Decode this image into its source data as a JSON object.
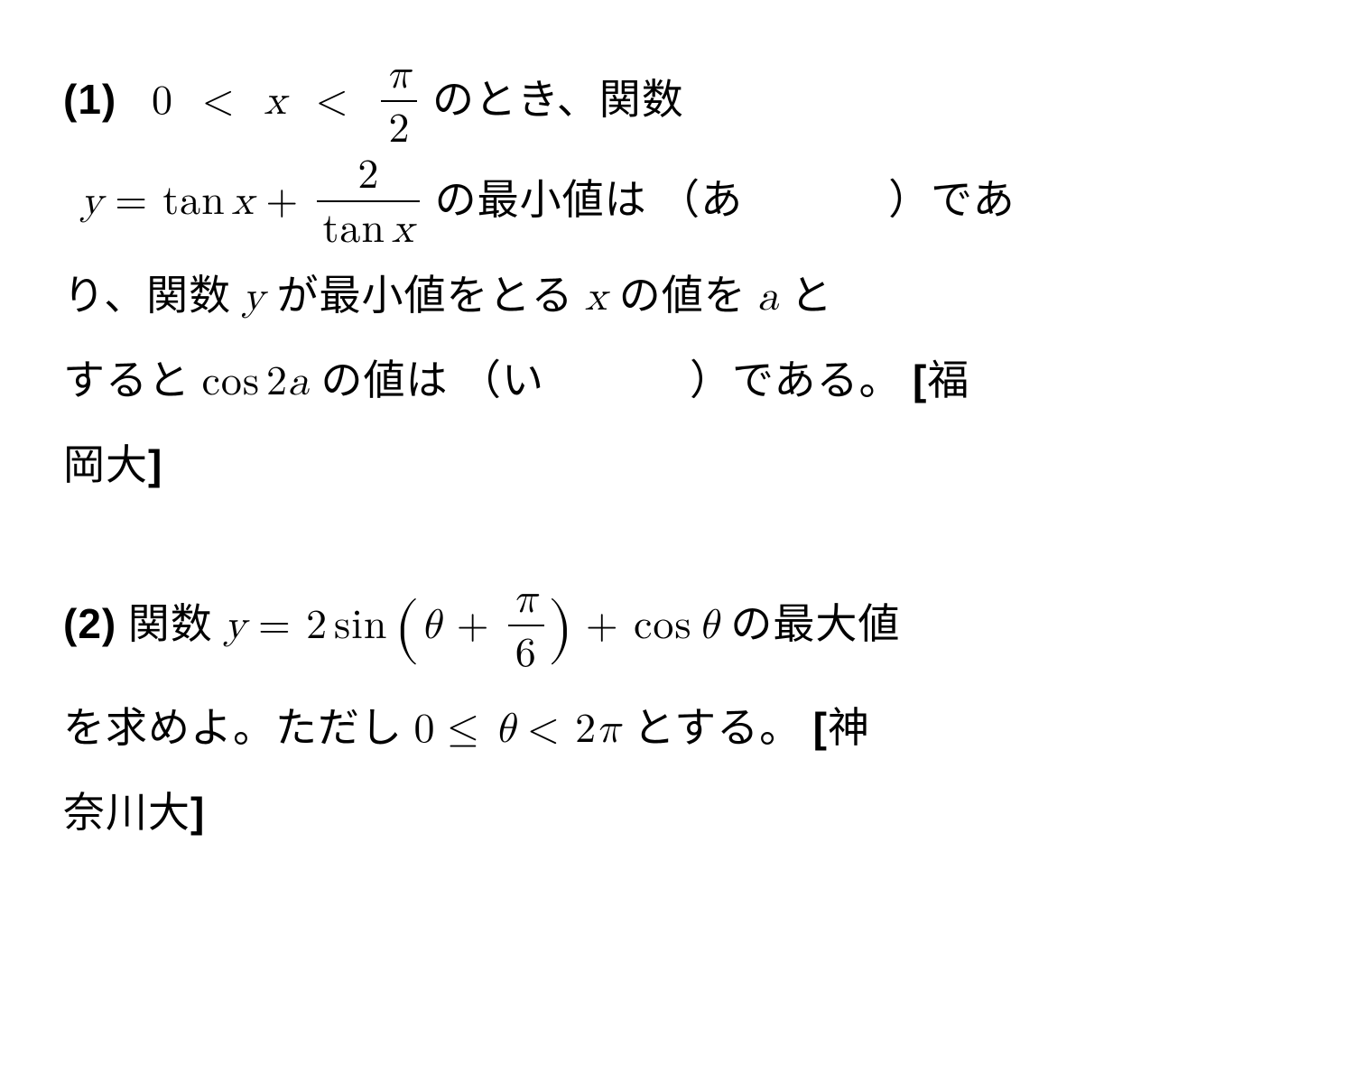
{
  "page": {
    "background_color": "#ffffff",
    "text_color": "#000000",
    "font_size_pt": 34,
    "line_height": 2.0,
    "font_family_body": "Mincho serif",
    "font_family_math": "Latin Modern / Times italic"
  },
  "p1": {
    "label": "(1)",
    "ineq_lhs": "0",
    "ineq_lt1": "<",
    "ineq_var": "x",
    "ineq_lt2": "<",
    "frac1_top": "π",
    "frac1_bot": "2",
    "text1": " のとき、関数",
    "func_y": "y",
    "eq": " = ",
    "tan": "tan",
    "x": "x",
    "plus": " + ",
    "frac2_top": "2",
    "frac2_bot_tan": "tan",
    "frac2_bot_x": "x",
    "text2": " の最小値は ",
    "paren_open": "（",
    "blank1_label": "あ",
    "paren_close": "）",
    "text3": "であ",
    "text4": "り、関数 ",
    "y2": "y",
    "text5": " が最小値をとる ",
    "x2": "x",
    "text6": " の値を ",
    "a": "a",
    "text7": " と",
    "text8": "すると ",
    "cos": "cos",
    "two": "2",
    "a2": "a",
    "text9": " の値は ",
    "blank2_label": "い",
    "text10": "である。",
    "source_open": "[",
    "source1": "福",
    "source2": "岡大",
    "source_close": "]"
  },
  "p2": {
    "label": "(2)",
    "text1": " 関数 ",
    "y": "y",
    "eq": " = ",
    "two": "2",
    "sin": "sin",
    "theta": "θ",
    "plus": " + ",
    "frac_top": "π",
    "frac_bot": "6",
    "plus2": " + ",
    "cos": "cos",
    "theta2": "θ",
    "text2": " の最大値",
    "text3": "を求めよ。ただし ",
    "zero": "0",
    "le": " ≤ ",
    "theta3": "θ",
    "lt": " < ",
    "two2": "2",
    "pi": "π",
    "text4": " とする。",
    "source_open": "[",
    "source1": "神",
    "source2": "奈川大",
    "source_close": "]"
  }
}
